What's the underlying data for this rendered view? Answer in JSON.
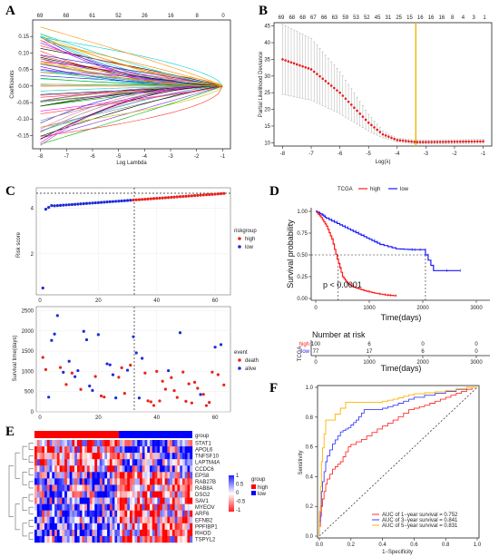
{
  "panels": {
    "A": {
      "label": "A",
      "top_ticks": [
        "69",
        "68",
        "61",
        "52",
        "26",
        "16",
        "8",
        "0"
      ],
      "x_ticks": [
        "-8",
        "-7",
        "-6",
        "-5",
        "-4",
        "-3",
        "-2",
        "-1"
      ],
      "x_range": [
        -8.3,
        -0.7
      ],
      "y_ticks": [
        "0.15",
        "0.10",
        "0.05",
        "0.00",
        "-0.05",
        "-0.10",
        "-0.15"
      ],
      "y_range": [
        -0.19,
        0.2
      ],
      "xlabel": "Log Lambda",
      "ylabel": "Coefficients"
    },
    "B": {
      "label": "B",
      "top_ticks": [
        "69",
        "68",
        "68",
        "67",
        "66",
        "63",
        "59",
        "53",
        "52",
        "45",
        "31",
        "25",
        "15",
        "16",
        "16",
        "16",
        "8",
        "4",
        "3",
        "1"
      ],
      "x_ticks": [
        "-8",
        "-7",
        "-6",
        "-5",
        "-4",
        "-3",
        "-2",
        "-1"
      ],
      "x_range": [
        -8.3,
        -0.7
      ],
      "y_ticks": [
        "10",
        "15",
        "20",
        "25",
        "30",
        "35",
        "40",
        "45"
      ],
      "y_range": [
        9,
        46
      ],
      "xlabel": "Log(λ)",
      "ylabel": "Partial Likelihood Deviance",
      "vline_x": -3.35
    },
    "C": {
      "label": "C",
      "risk": {
        "ylabel": "Risk score",
        "y_ticks": [
          "2",
          "4"
        ],
        "x_ticks": [
          "0",
          "20",
          "40",
          "60"
        ],
        "legend_title": "riskgroup",
        "legend": [
          "high",
          "low"
        ],
        "colors": {
          "high": "#e8231c",
          "low": "#1d2bd6"
        }
      },
      "survival": {
        "ylabel": "Survival time(days)",
        "y_ticks": [
          "0",
          "500",
          "1000",
          "1500",
          "2000",
          "2500"
        ],
        "x_ticks": [
          "0",
          "20",
          "40",
          "60"
        ],
        "legend_title": "event",
        "legend": [
          "death",
          "alive"
        ],
        "colors": {
          "death": "#e8231c",
          "alive": "#1d2bd6"
        }
      }
    },
    "D": {
      "label": "D",
      "legend_title": "TCGA",
      "legend": [
        "high",
        "low"
      ],
      "colors": {
        "high": "#ff1a1a",
        "low": "#1a1aff"
      },
      "ylabel": "Survival probability",
      "xlabel": "Time(days)",
      "y_ticks": [
        "0.00",
        "0.25",
        "0.50",
        "0.75",
        "1.00"
      ],
      "x_ticks": [
        "0",
        "1000",
        "2000",
        "3000"
      ],
      "pvalue": "p < 0.0001",
      "risk_table": {
        "title": "Number at risk",
        "strata_label": "TCGA",
        "rows": [
          {
            "name": "high",
            "values": [
              "100",
              "6",
              "0",
              "0"
            ]
          },
          {
            "name": "low",
            "values": [
              "77",
              "17",
              "6",
              "0"
            ]
          }
        ],
        "xlabel": "Time(days)"
      }
    },
    "E": {
      "label": "E",
      "genes": [
        "STAT1",
        "APOL6",
        "TNFSF10",
        "LAPTM4A",
        "CCDC6",
        "EPS8",
        "RAB27B",
        "RAB8A",
        "DSG2",
        "SAV1",
        "MYEOV",
        "ARF6",
        "EFNB2",
        "PPFIBP1",
        "RHOD",
        "TSPYL2"
      ],
      "top_legend": "group",
      "scale_ticks": [
        "1",
        "0.5",
        "0",
        "-0.5",
        "-1"
      ],
      "group_legend_title": "group",
      "group_legend": [
        "high",
        "low"
      ],
      "group_colors": {
        "high": "#ff0000",
        "low": "#0000ff"
      }
    },
    "F": {
      "label": "F",
      "ylabel": "Sensitivity",
      "xlabel": "1−Specificity",
      "ticks": [
        "0.0",
        "0.2",
        "0.4",
        "0.6",
        "0.8",
        "1.0"
      ],
      "legend": [
        {
          "text": "AUC of 1−year survival = 0.752",
          "color": "#ff3030"
        },
        {
          "text": "AUC of 3−year survival = 0.841",
          "color": "#4040ff"
        },
        {
          "text": "AUC of 5−year survival = 0.831",
          "color": "#ffb400"
        }
      ]
    }
  },
  "chart_data": [
    {
      "type": "line",
      "panel": "A",
      "title": "",
      "xlabel": "Log Lambda",
      "ylabel": "Coefficients",
      "xlim": [
        -8.3,
        -0.7
      ],
      "ylim": [
        -0.19,
        0.2
      ],
      "series_count": 69,
      "description_values": {
        "x": [
          -8,
          -6,
          -4,
          -2,
          -1
        ]
      }
    },
    {
      "type": "scatter",
      "panel": "B",
      "xlabel": "Log(λ)",
      "ylabel": "Partial Likelihood Deviance",
      "x": [
        -8,
        -7,
        -6,
        -5,
        -4.5,
        -4,
        -3.35,
        -3,
        -2,
        -1
      ],
      "y": [
        35,
        32,
        25,
        16,
        12.5,
        10.8,
        10.2,
        10.2,
        10.3,
        10.4
      ],
      "ylim": [
        9,
        46
      ]
    },
    {
      "type": "scatter",
      "panel": "C-risk",
      "ylabel": "Risk score",
      "x_range": [
        0,
        63
      ],
      "groups": {
        "low": [
          1,
          31
        ],
        "high": [
          32,
          63
        ]
      },
      "y_range_values": [
        0.5,
        4.7
      ]
    },
    {
      "type": "scatter",
      "panel": "C-survival",
      "ylabel": "Survival time(days)",
      "ylim": [
        0,
        2500
      ]
    },
    {
      "type": "line",
      "panel": "D",
      "title": "",
      "xlabel": "Time(days)",
      "ylabel": "Survival probability",
      "xlim": [
        0,
        3000
      ],
      "ylim": [
        0,
        1
      ],
      "series": [
        {
          "name": "high",
          "x": [
            0,
            100,
            200,
            300,
            400,
            500,
            600,
            700,
            900,
            1100,
            1300,
            1500
          ],
          "y": [
            1.0,
            0.93,
            0.83,
            0.68,
            0.45,
            0.25,
            0.17,
            0.13,
            0.09,
            0.06,
            0.04,
            0.03
          ]
        },
        {
          "name": "low",
          "x": [
            0,
            100,
            200,
            400,
            600,
            800,
            1000,
            1200,
            1500,
            1800,
            2000,
            2200,
            2700
          ],
          "y": [
            1.0,
            0.97,
            0.92,
            0.86,
            0.8,
            0.74,
            0.68,
            0.62,
            0.57,
            0.56,
            0.56,
            0.32,
            0.32
          ]
        }
      ]
    },
    {
      "type": "heatmap",
      "panel": "E",
      "rows": 16,
      "columns": 63,
      "scale": [
        -1,
        1
      ]
    },
    {
      "type": "line",
      "panel": "F",
      "xlabel": "1−Specificity",
      "ylabel": "Sensitivity",
      "xlim": [
        0,
        1
      ],
      "ylim": [
        0,
        1
      ],
      "series": [
        {
          "name": "AUC of 1−year survival = 0.752",
          "x": [
            0,
            0.02,
            0.05,
            0.1,
            0.15,
            0.2,
            0.3,
            0.4,
            0.5,
            0.6,
            0.7,
            0.8,
            0.9,
            1.0
          ],
          "y": [
            0,
            0.2,
            0.35,
            0.45,
            0.5,
            0.6,
            0.65,
            0.72,
            0.78,
            0.85,
            0.88,
            0.92,
            0.96,
            1.0
          ]
        },
        {
          "name": "AUC of 3−year survival = 0.841",
          "x": [
            0,
            0.02,
            0.05,
            0.1,
            0.15,
            0.2,
            0.25,
            0.3,
            0.4,
            0.5,
            0.6,
            0.8,
            1.0
          ],
          "y": [
            0,
            0.3,
            0.5,
            0.62,
            0.7,
            0.73,
            0.78,
            0.85,
            0.85,
            0.88,
            0.92,
            0.96,
            1.0
          ]
        },
        {
          "name": "AUC of 5−year survival = 0.831",
          "x": [
            0,
            0.02,
            0.05,
            0.1,
            0.2,
            0.3,
            0.4,
            0.5,
            0.6,
            0.8,
            1.0
          ],
          "y": [
            0,
            0.5,
            0.78,
            0.78,
            0.9,
            0.9,
            0.9,
            0.92,
            0.95,
            0.97,
            1.0
          ]
        }
      ]
    }
  ]
}
